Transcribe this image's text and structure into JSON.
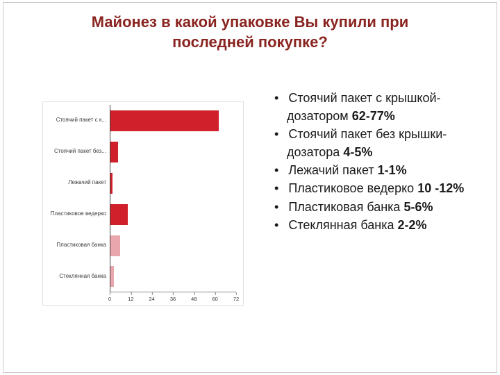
{
  "colors": {
    "title": "#8a2420",
    "text": "#1a1a1a",
    "bar_red": "#d0202c",
    "bar_pink": "#eaa6ad",
    "axis": "#404040"
  },
  "title": {
    "line1": "Майонез в какой упаковке Вы купили при",
    "line2": "последней покупке?"
  },
  "chart_data": {
    "type": "bar",
    "orientation": "horizontal",
    "title": "",
    "categories": [
      "Стоячий пакет с к...",
      "Стоячий пакет без...",
      "Лежачий пакет",
      "Пластиковое ведерко",
      "Пластиковая банка",
      "Стеклянная банка"
    ],
    "values": [
      62,
      4.5,
      1,
      10,
      5.5,
      2
    ],
    "bar_colors": [
      "#d0202c",
      "#d0202c",
      "#d0202c",
      "#d0202c",
      "#eaa6ad",
      "#eaa6ad"
    ],
    "xlabel": "",
    "ylabel": "",
    "xlim": [
      0,
      72
    ],
    "xticks": [
      0,
      12,
      24,
      36,
      48,
      60,
      72
    ],
    "grid": false,
    "legend": false
  },
  "bullets": [
    {
      "text": "Стоячий пакет с крышкой-дозатором",
      "value": "62-77%"
    },
    {
      "text": "Стоячий пакет без крышки-дозатора",
      "value": "4-5%"
    },
    {
      "text": "Лежачий пакет",
      "value": "1-1%"
    },
    {
      "text": "Пластиковое ведерко",
      "value": "10 -12%"
    },
    {
      "text": "Пластиковая банка",
      "value": "5-6%"
    },
    {
      "text": "Стеклянная банка",
      "value": "2-2%"
    }
  ]
}
